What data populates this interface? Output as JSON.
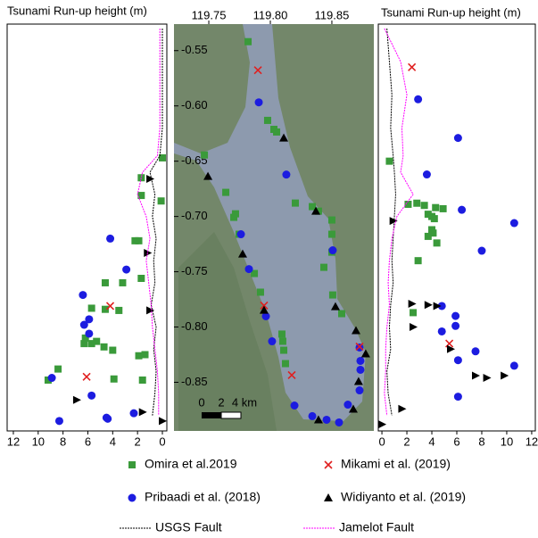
{
  "legend": [
    {
      "name": "Omira et al.2019",
      "color": "#3a9a3a",
      "marker": "square"
    },
    {
      "name": "Pribaadi et al. (2018)",
      "color": "#1c1ce0",
      "marker": "circle"
    },
    {
      "name": "Mikami et al. (2019)",
      "color": "#e02020",
      "marker": "x"
    },
    {
      "name": "Widiyanto et al. (2019)",
      "color": "#000000",
      "marker": "triangle"
    },
    {
      "name": "USGS Fault",
      "color": "#000000",
      "marker": "line"
    },
    {
      "name": "Jamelot Fault",
      "color": "#ff00ff",
      "marker": "line"
    }
  ],
  "chart_data": [
    {
      "type": "scatter",
      "title": "Tsunami Run-up height (m)",
      "xlim": [
        12.5,
        -0.36
      ],
      "ylim": [
        -0.894,
        -0.526
      ],
      "xticks": [
        12,
        10,
        8,
        6,
        4,
        2,
        0
      ],
      "series": [
        {
          "x": [
            0,
            1.7,
            1.7,
            2.2,
            1.9,
            4.6,
            3.2,
            1.7,
            5.7,
            4.6,
            3.5,
            6.2,
            5.3,
            5.7,
            6.3,
            4.7,
            4.0,
            1.9,
            1.4,
            8.4,
            9.2,
            3.9,
            1.6,
            0.1
          ],
          "y": [
            -0.647,
            -0.665,
            -0.681,
            -0.722,
            -0.722,
            -0.76,
            -0.76,
            -0.756,
            -0.783,
            -0.784,
            -0.785,
            -0.81,
            -0.813,
            -0.815,
            -0.815,
            -0.818,
            -0.821,
            -0.826,
            -0.825,
            -0.838,
            -0.848,
            -0.847,
            -0.848,
            -0.686
          ]
        },
        {
          "x": [
            4.2,
            2.9,
            6.4,
            5.9,
            6.3,
            5.9,
            8.9,
            5.7,
            2.3,
            4.5,
            4.4,
            8.3
          ],
          "y": [
            -0.72,
            -0.748,
            -0.771,
            -0.793,
            -0.798,
            -0.806,
            -0.846,
            -0.862,
            -0.878,
            -0.882,
            -0.883,
            -0.885
          ]
        },
        {
          "x": [
            4.2,
            6.1
          ],
          "y": [
            -0.781,
            -0.845
          ]
        },
        {
          "x": [
            1.0,
            1.2,
            1.0,
            6.9,
            1.6,
            0.0
          ],
          "y": [
            -0.666,
            -0.733,
            -0.785,
            -0.866,
            -0.877,
            -0.885
          ]
        },
        {
          "x": [
            0,
            0,
            0,
            0,
            0.2,
            1.0,
            0.6,
            0.8,
            0.5,
            0.7,
            0.6,
            0.9,
            0.5,
            0.7,
            0.5,
            0.6,
            0.8
          ],
          "y": [
            -0.53,
            -0.56,
            -0.59,
            -0.62,
            -0.645,
            -0.66,
            -0.68,
            -0.7,
            -0.72,
            -0.74,
            -0.76,
            -0.78,
            -0.8,
            -0.82,
            -0.84,
            -0.86,
            -0.88
          ]
        },
        {
          "x": [
            0.2,
            0.2,
            0.2,
            0.2,
            0.4,
            1.6,
            2.0,
            1.3,
            1.0,
            1.3,
            1.1,
            0.9,
            0.8,
            0.6,
            0.4,
            0.3,
            0.3
          ],
          "y": [
            -0.53,
            -0.56,
            -0.59,
            -0.62,
            -0.645,
            -0.66,
            -0.68,
            -0.7,
            -0.72,
            -0.74,
            -0.76,
            -0.78,
            -0.8,
            -0.82,
            -0.84,
            -0.86,
            -0.88
          ]
        }
      ]
    },
    {
      "type": "map",
      "xlim": [
        119.7217,
        119.8841
      ],
      "ylim": [
        -0.894,
        -0.526
      ],
      "xticks": [
        119.75,
        {
          "value": 119.8,
          "label": "119.80"
        },
        119.85
      ],
      "yticks": [
        -0.55,
        {
          "value": -0.6,
          "label": "-0.60"
        },
        -0.65,
        {
          "value": -0.7,
          "label": "-0.70"
        },
        -0.75,
        {
          "value": -0.8,
          "label": "-0.80"
        },
        -0.85
      ],
      "scale_labels": [
        "0",
        "2",
        "4 km"
      ],
      "series": [
        {
          "x": [
            119.7819,
            119.7978,
            119.8029,
            119.8051,
            119.7464,
            119.7638,
            119.7717,
            119.7703,
            119.7746,
            119.787,
            119.792,
            119.8094,
            119.8101,
            119.8109,
            119.8123,
            119.8203,
            119.8341,
            119.8391,
            119.85,
            119.85,
            119.85,
            119.8435,
            119.8507,
            119.858
          ],
          "y": [
            -0.5419,
            -0.6131,
            -0.6212,
            -0.6236,
            -0.6444,
            -0.6782,
            -0.6976,
            -0.7008,
            -0.7161,
            -0.7516,
            -0.7685,
            -0.8064,
            -0.8129,
            -0.821,
            -0.8331,
            -0.6879,
            -0.6911,
            -0.6952,
            -0.7032,
            -0.7161,
            -0.7323,
            -0.746,
            -0.771,
            -0.7879
          ]
        },
        {
          "x": [
            119.7906,
            119.813,
            119.7761,
            119.7826,
            119.8507,
            119.8725,
            119.8732,
            119.8732,
            119.8725,
            119.863,
            119.8558,
            119.8457,
            119.8341,
            119.8196,
            119.8014,
            119.7964
          ],
          "y": [
            -0.5968,
            -0.6621,
            -0.7161,
            -0.7476,
            -0.7306,
            -0.8185,
            -0.8306,
            -0.8387,
            -0.8573,
            -0.8702,
            -0.8863,
            -0.8839,
            -0.8806,
            -0.871,
            -0.8129,
            -0.7903
          ]
        },
        {
          "x": [
            119.7899,
            119.7949,
            119.8174,
            119.8725
          ],
          "y": [
            -0.5677,
            -0.7806,
            -0.8435,
            -0.8177
          ]
        },
        {
          "x": [
            119.8109,
            119.7493,
            119.7775,
            119.7949,
            119.837,
            119.8529,
            119.8696,
            119.8775,
            119.8717,
            119.8674,
            119.8391
          ],
          "y": [
            -0.629,
            -0.6637,
            -0.7339,
            -0.7847,
            -0.6952,
            -0.7815,
            -0.8032,
            -0.8242,
            -0.8492,
            -0.8742,
            -0.8839
          ]
        }
      ]
    },
    {
      "type": "scatter",
      "title": "Tsunami Run-up height (m)",
      "xlim": [
        -0.29,
        12.29
      ],
      "ylim": [
        -0.894,
        -0.526
      ],
      "xticks": [
        0,
        2,
        4,
        6,
        8,
        10,
        12
      ],
      "series": [
        {
          "x": [
            0.6,
            2.1,
            2.8,
            3.4,
            4.3,
            4.9,
            3.7,
            4.0,
            4.2,
            4.1,
            4.0,
            3.7,
            4.4,
            2.9,
            2.5
          ],
          "y": [
            -0.65,
            -0.689,
            -0.688,
            -0.69,
            -0.692,
            -0.693,
            -0.698,
            -0.7,
            -0.702,
            -0.715,
            -0.712,
            -0.718,
            -0.724,
            -0.74,
            -0.787
          ]
        },
        {
          "x": [
            2.9,
            6.1,
            3.6,
            6.4,
            10.6,
            8.0,
            4.8,
            5.9,
            5.9,
            4.8,
            7.5,
            6.1,
            10.6,
            6.1
          ],
          "y": [
            -0.594,
            -0.629,
            -0.662,
            -0.694,
            -0.706,
            -0.731,
            -0.781,
            -0.79,
            -0.799,
            -0.804,
            -0.822,
            -0.83,
            -0.835,
            -0.863
          ]
        },
        {
          "x": [
            2.4,
            5.4
          ],
          "y": [
            -0.565,
            -0.815
          ]
        },
        {
          "x": [
            0.9,
            2.4,
            3.7,
            4.4,
            2.5,
            5.5,
            7.5,
            8.4,
            9.8,
            1.6,
            0
          ],
          "y": [
            -0.704,
            -0.779,
            -0.78,
            -0.781,
            -0.8,
            -0.82,
            -0.844,
            -0.846,
            -0.844,
            -0.874,
            -0.888
          ]
        },
        {
          "x": [
            0.4,
            0.6,
            0.8,
            0.7,
            0.9,
            1.0,
            1.1,
            1.0,
            0.9,
            0.8,
            0.9,
            0.7,
            0.6,
            0.7,
            0.4,
            0.5,
            0.8
          ],
          "y": [
            -0.53,
            -0.56,
            -0.59,
            -0.62,
            -0.645,
            -0.66,
            -0.68,
            -0.7,
            -0.72,
            -0.74,
            -0.76,
            -0.78,
            -0.8,
            -0.82,
            -0.84,
            -0.86,
            -0.88
          ]
        },
        {
          "x": [
            0.2,
            1.5,
            2.0,
            1.6,
            1.7,
            1.5,
            2.5,
            1.2,
            0.8,
            0.6,
            0.5,
            0.6,
            0.4,
            0.3,
            0.3,
            0.2,
            0.4
          ],
          "y": [
            -0.53,
            -0.56,
            -0.59,
            -0.62,
            -0.645,
            -0.66,
            -0.68,
            -0.7,
            -0.72,
            -0.74,
            -0.76,
            -0.78,
            -0.8,
            -0.82,
            -0.84,
            -0.86,
            -0.88
          ]
        }
      ]
    }
  ]
}
